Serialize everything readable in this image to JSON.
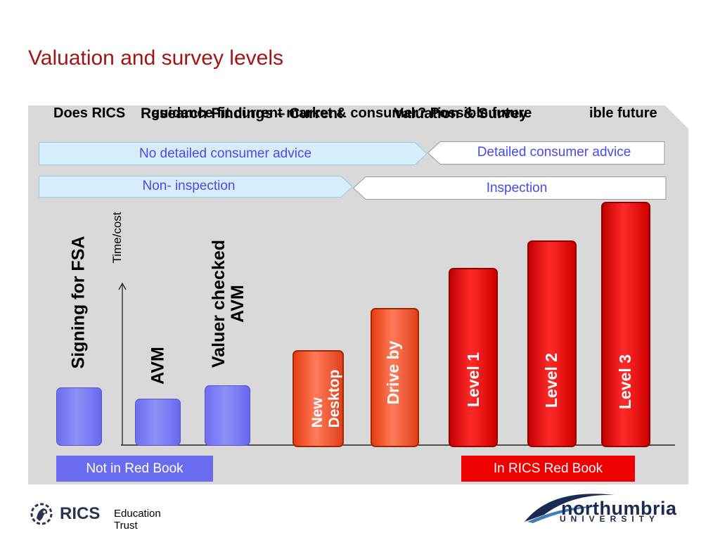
{
  "slide": {
    "title": "Valuation and survey levels"
  },
  "header": {
    "left": "Does RICS",
    "overlap_1": "Research Findings – Current",
    "overlap_2": "guidance fit current market & consumer? Possible future",
    "overlap_3": "Valuation & Survey",
    "right": "ible future"
  },
  "advice": {
    "none": "No detailed consumer advice",
    "detailed": "Detailed consumer advice"
  },
  "inspection": {
    "none": "Non- inspection",
    "yes": "Inspection"
  },
  "axis": {
    "label": "Time/cost"
  },
  "bars": {
    "signing": "Signing for FSA",
    "avm": "AVM",
    "valuer_line1": "Valuer checked",
    "valuer_line2": "AVM",
    "desktop_line1": "New",
    "desktop_line2": "Desktop",
    "driveby": "Drive by",
    "level1": "Level 1",
    "level2": "Level 2",
    "level3": "Level 3"
  },
  "books": {
    "not_in": "Not in Red Book",
    "in": "In RICS Red Book"
  },
  "footer": {
    "rics": "RICS",
    "trust": "Education Trust",
    "northumbria": "northumbria",
    "university": "UNIVERSITY"
  },
  "colors": {
    "title_red": "#a31515",
    "panel_grey": "#d9d9d9",
    "blue_bar": "#7b7bf5",
    "red_bar": "#e00000",
    "orange_bar": "#f05a30",
    "book_blue": "#6b6bf0",
    "book_red": "#ee0000",
    "northumbria_navy": "#1a2a50"
  }
}
